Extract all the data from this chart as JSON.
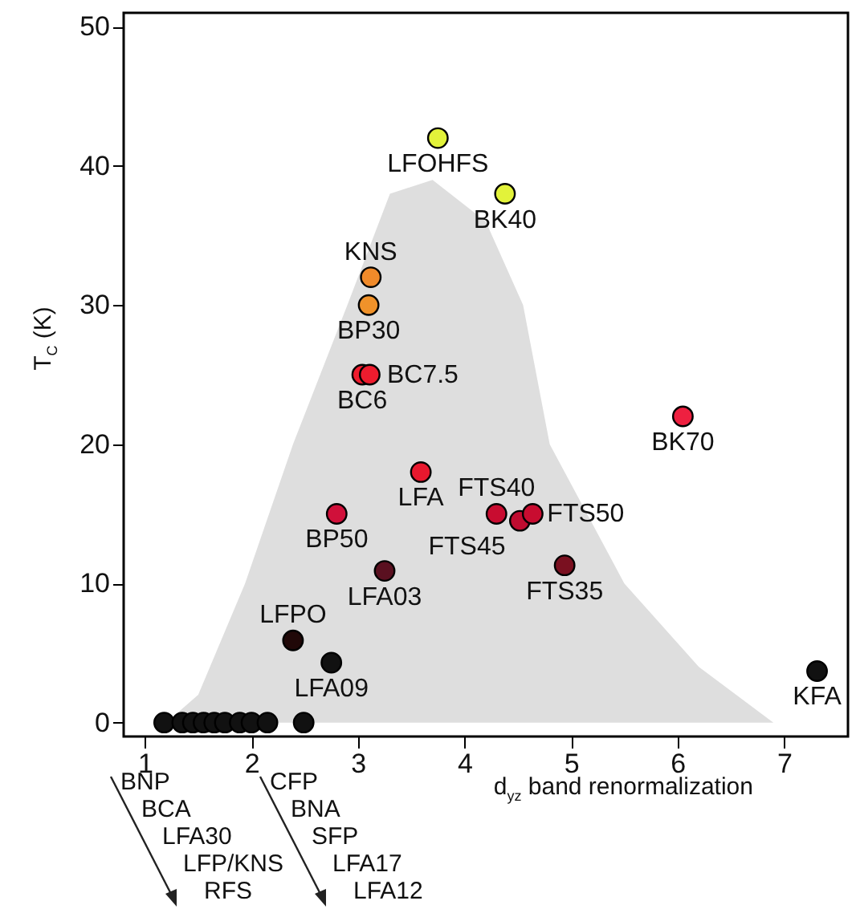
{
  "chart_data": {
    "type": "scatter",
    "xlabel": "d$_{yz}$ band renormalization",
    "ylabel": "T$_{C}$ (K)",
    "xlim": [
      0.8,
      7.6
    ],
    "ylim": [
      -1,
      51
    ],
    "xticks": [
      1,
      2,
      3,
      4,
      5,
      6,
      7
    ],
    "yticks": [
      0,
      10,
      20,
      30,
      40,
      50
    ],
    "grid": false,
    "series": [
      {
        "type": "area",
        "color": "#dedede",
        "x": [
          1.2,
          1.5,
          1.94,
          2.39,
          2.9,
          3.3,
          3.7,
          4.2,
          4.55,
          4.8,
          5.5,
          6.2,
          6.9
        ],
        "values": [
          0,
          2,
          10,
          20,
          30,
          38,
          39,
          36,
          30,
          20,
          10,
          4,
          0
        ]
      },
      {
        "marker": "circle",
        "x": [
          3.75,
          4.38,
          3.12,
          3.1,
          3.04,
          3.11,
          6.05,
          3.59,
          2.8,
          4.3,
          4.52,
          4.64,
          4.94,
          3.25,
          2.39,
          2.75,
          7.31,
          1.18,
          1.35,
          1.45,
          1.55,
          1.65,
          1.75,
          1.89,
          2.0,
          2.15,
          2.49
        ],
        "values": [
          42,
          38,
          32,
          30,
          25,
          25,
          22,
          18,
          15,
          15,
          14.5,
          15,
          11.3,
          10.9,
          5.9,
          4.3,
          3.7,
          0,
          0,
          0,
          0,
          0,
          0,
          0,
          0,
          0,
          0
        ],
        "colors": [
          "#e2f23a",
          "#e2f23a",
          "#f08a2a",
          "#f0922a",
          "#ee1c2e",
          "#ee1c2e",
          "#ee2040",
          "#e8182e",
          "#d0103a",
          "#c80c30",
          "#c00c30",
          "#c80c30",
          "#7a1020",
          "#5a1020",
          "#200808",
          "#111111",
          "#111111",
          "#111111",
          "#111111",
          "#111111",
          "#111111",
          "#111111",
          "#111111",
          "#111111",
          "#111111",
          "#111111",
          "#111111"
        ]
      }
    ],
    "annotations": [
      {
        "text": "LFOHFS",
        "x": 3.75,
        "y": 42
      },
      {
        "text": "BK40",
        "x": 4.38,
        "y": 38
      },
      {
        "text": "KNS",
        "x": 3.12,
        "y": 32
      },
      {
        "text": "BP30",
        "x": 3.1,
        "y": 30
      },
      {
        "text": "BC6",
        "x": 3.04,
        "y": 25
      },
      {
        "text": "BC7.5",
        "x": 3.11,
        "y": 25
      },
      {
        "text": "BK70",
        "x": 6.05,
        "y": 22
      },
      {
        "text": "LFA",
        "x": 3.59,
        "y": 18
      },
      {
        "text": "BP50",
        "x": 2.8,
        "y": 15
      },
      {
        "text": "FTS40",
        "x": 4.3,
        "y": 15
      },
      {
        "text": "FTS45",
        "x": 4.52,
        "y": 14.5
      },
      {
        "text": "FTS50",
        "x": 4.64,
        "y": 15
      },
      {
        "text": "FTS35",
        "x": 4.94,
        "y": 11.3
      },
      {
        "text": "LFA03",
        "x": 3.25,
        "y": 10.9
      },
      {
        "text": "LFPO",
        "x": 2.39,
        "y": 5.9
      },
      {
        "text": "LFA09",
        "x": 2.75,
        "y": 4.3
      },
      {
        "text": "KFA",
        "x": 7.31,
        "y": 3.7
      },
      "BNP",
      "BCA",
      "LFA30",
      "LFP/KNS",
      "RFS",
      "CFP",
      "BNA",
      "SFP",
      "LFA17",
      "LFA12"
    ]
  }
}
